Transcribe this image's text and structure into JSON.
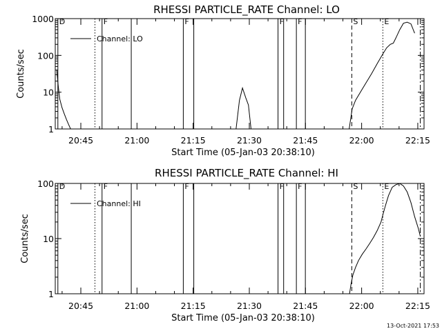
{
  "chart_data": [
    {
      "type": "line",
      "title": "RHESSI PARTICLE_RATE Channel: LO",
      "xlabel": "Start Time (05-Jan-03 20:38:10)",
      "ylabel": "Counts/sec",
      "yscale": "log",
      "ylim": [
        1,
        1000
      ],
      "ytick_labels": [
        "1",
        "10",
        "100",
        "1000"
      ],
      "ytick_values": [
        1,
        10,
        100,
        1000
      ],
      "xlim_minutes_after_start": [
        0,
        98.5
      ],
      "xtick_labels": [
        "20:45",
        "21:00",
        "21:15",
        "21:30",
        "21:45",
        "22:00",
        "22:15"
      ],
      "xtick_values": [
        6.83,
        21.83,
        36.83,
        51.83,
        66.83,
        81.83,
        96.83
      ],
      "legend": {
        "position": "top-left",
        "label": "Channel: LO"
      },
      "series": [
        {
          "name": "Channel: LO",
          "segments": [
            {
              "x": [
                0.4,
                0.8,
                1.2,
                1.8,
                2.4,
                3.0,
                3.6,
                4.2
              ],
              "y": [
                40,
                15,
                6.5,
                3.8,
                2.6,
                1.8,
                1.3,
                0.95
              ]
            },
            {
              "x": [
                48.3,
                49.2,
                50.0,
                50.9,
                51.6,
                52.3
              ],
              "y": [
                1,
                6,
                13,
                7,
                4.5,
                1
              ]
            },
            {
              "x": [
                78.5,
                79.3,
                80.2,
                81.5,
                83.0,
                84.5,
                86.0,
                87.5,
                88.5,
                89.5,
                90.3,
                91.0,
                92.0,
                93.0,
                94.0,
                95.0,
                96.0
              ],
              "y": [
                1,
                3.5,
                6,
                10,
                18,
                32,
                60,
                110,
                160,
                200,
                215,
                300,
                500,
                750,
                800,
                720,
                400
              ]
            }
          ]
        }
      ],
      "markers": [
        {
          "label": "D",
          "x": 0.7,
          "style": "solid"
        },
        {
          "label": "",
          "x": 10.6,
          "style": "dotted"
        },
        {
          "label": "F",
          "x": 12.5,
          "style": "solid"
        },
        {
          "label": "",
          "x": 20.3,
          "style": "solid"
        },
        {
          "label": "F",
          "x": 34.2,
          "style": "solid"
        },
        {
          "label": "",
          "x": 37.0,
          "style": "solid"
        },
        {
          "label": "F",
          "x": 59.5,
          "style": "solid"
        },
        {
          "label": "",
          "x": 61.0,
          "style": "solid"
        },
        {
          "label": "F",
          "x": 64.4,
          "style": "solid"
        },
        {
          "label": "",
          "x": 66.8,
          "style": "solid"
        },
        {
          "label": "S",
          "x": 79.2,
          "style": "dashed"
        },
        {
          "label": "E",
          "x": 87.5,
          "style": "dotted"
        },
        {
          "label": "",
          "x": 97.5,
          "style": "dashdot"
        }
      ]
    },
    {
      "type": "line",
      "title": "RHESSI PARTICLE_RATE Channel: HI",
      "xlabel": "Start Time (05-Jan-03 20:38:10)",
      "ylabel": "Counts/sec",
      "yscale": "log",
      "ylim": [
        1,
        100
      ],
      "ytick_labels": [
        "1",
        "10",
        "100"
      ],
      "ytick_values": [
        1,
        10,
        100
      ],
      "xlim_minutes_after_start": [
        0,
        98.5
      ],
      "xtick_labels": [
        "20:45",
        "21:00",
        "21:15",
        "21:30",
        "21:45",
        "22:00",
        "22:15"
      ],
      "xtick_values": [
        6.83,
        21.83,
        36.83,
        51.83,
        66.83,
        81.83,
        96.83
      ],
      "legend": {
        "position": "top-left",
        "label": "Channel: HI"
      },
      "series": [
        {
          "name": "Channel: HI",
          "segments": [
            {
              "x": [
                78.6,
                79.0,
                79.5,
                80.2,
                81.0,
                82.0,
                83.0,
                84.0,
                85.0,
                86.0,
                87.0,
                87.5,
                88.2,
                89.0,
                90.0,
                91.0,
                92.0,
                93.0,
                94.0,
                95.0,
                96.0,
                97.0,
                97.5
              ],
              "y": [
                1,
                1.5,
                2.2,
                3.0,
                4.0,
                5.2,
                6.5,
                8.2,
                10.5,
                14,
                20,
                27,
                40,
                60,
                85,
                95,
                100,
                90,
                70,
                45,
                25,
                15,
                11
              ]
            }
          ]
        }
      ],
      "markers": [
        {
          "label": "D",
          "x": 0.7,
          "style": "solid"
        },
        {
          "label": "",
          "x": 10.6,
          "style": "dotted"
        },
        {
          "label": "F",
          "x": 12.5,
          "style": "solid"
        },
        {
          "label": "",
          "x": 20.3,
          "style": "solid"
        },
        {
          "label": "F",
          "x": 34.2,
          "style": "solid"
        },
        {
          "label": "",
          "x": 37.0,
          "style": "solid"
        },
        {
          "label": "F",
          "x": 59.5,
          "style": "solid"
        },
        {
          "label": "",
          "x": 61.0,
          "style": "solid"
        },
        {
          "label": "F",
          "x": 64.4,
          "style": "solid"
        },
        {
          "label": "",
          "x": 66.8,
          "style": "solid"
        },
        {
          "label": "S",
          "x": 79.2,
          "style": "dashed"
        },
        {
          "label": "E",
          "x": 87.5,
          "style": "dotted"
        },
        {
          "label": "",
          "x": 97.5,
          "style": "dashdot"
        }
      ]
    }
  ],
  "footer": {
    "timestamp": "13-Oct-2021 17:53"
  }
}
